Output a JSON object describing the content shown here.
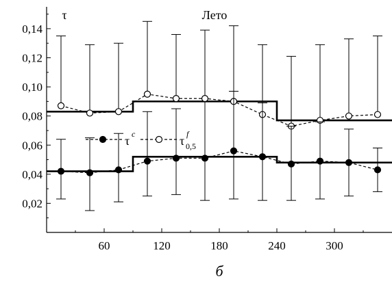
{
  "chart_data": {
    "type": "line",
    "title": "Лето",
    "ylabel": "τ",
    "caption": "б",
    "xlim": [
      0,
      360
    ],
    "ylim": [
      0,
      0.155
    ],
    "x_ticks": [
      60,
      120,
      180,
      240,
      300
    ],
    "x_tick_labels": [
      "60",
      "120",
      "180",
      "240",
      "300"
    ],
    "y_ticks": [
      0.02,
      0.04,
      0.06,
      0.08,
      0.1,
      0.12,
      0.14
    ],
    "y_tick_labels": [
      "0,02",
      "0,04",
      "0,06",
      "0,08",
      "0,10",
      "0,12",
      "0,14"
    ],
    "legend": {
      "placement": "middle-left",
      "entries": [
        {
          "base": "τ",
          "sup": "c",
          "sub": "",
          "marker": "filled-circle"
        },
        {
          "base": "τ",
          "sup": "f",
          "sub": "0,5",
          "marker": "open-circle"
        }
      ]
    },
    "series": [
      {
        "marker": "open-circle",
        "x": [
          15,
          45,
          75,
          105,
          135,
          165,
          195,
          225,
          255,
          285,
          315,
          345
        ],
        "y": [
          0.087,
          0.082,
          0.083,
          0.095,
          0.092,
          0.092,
          0.09,
          0.081,
          0.073,
          0.077,
          0.08,
          0.081
        ],
        "error_upper": [
          0.135,
          0.129,
          0.13,
          0.145,
          0.136,
          0.139,
          0.142,
          0.129,
          0.121,
          0.129,
          0.133,
          0.135
        ]
      },
      {
        "marker": "filled-circle",
        "x": [
          15,
          45,
          75,
          105,
          135,
          165,
          195,
          225,
          255,
          285,
          315,
          345
        ],
        "y": [
          0.042,
          0.041,
          0.043,
          0.049,
          0.051,
          0.051,
          0.056,
          0.052,
          0.047,
          0.049,
          0.048,
          0.043
        ],
        "error_upper": [
          0.064,
          0.065,
          0.068,
          0.083,
          0.085,
          0.09,
          0.097,
          0.089,
          0.073,
          0.076,
          0.071,
          0.058
        ],
        "error_lower": [
          0.023,
          0.015,
          0.021,
          0.025,
          0.026,
          0.022,
          0.023,
          0.022,
          0.022,
          0.023,
          0.025,
          0.028
        ]
      }
    ],
    "step_lines": [
      {
        "segments": [
          {
            "x0": 0,
            "x1": 90,
            "y": 0.083
          },
          {
            "x0": 90,
            "x1": 240,
            "y": 0.09
          },
          {
            "x0": 240,
            "x1": 360,
            "y": 0.077
          }
        ]
      },
      {
        "segments": [
          {
            "x0": 0,
            "x1": 90,
            "y": 0.042
          },
          {
            "x0": 90,
            "x1": 240,
            "y": 0.052
          },
          {
            "x0": 240,
            "x1": 360,
            "y": 0.048
          }
        ]
      }
    ]
  }
}
